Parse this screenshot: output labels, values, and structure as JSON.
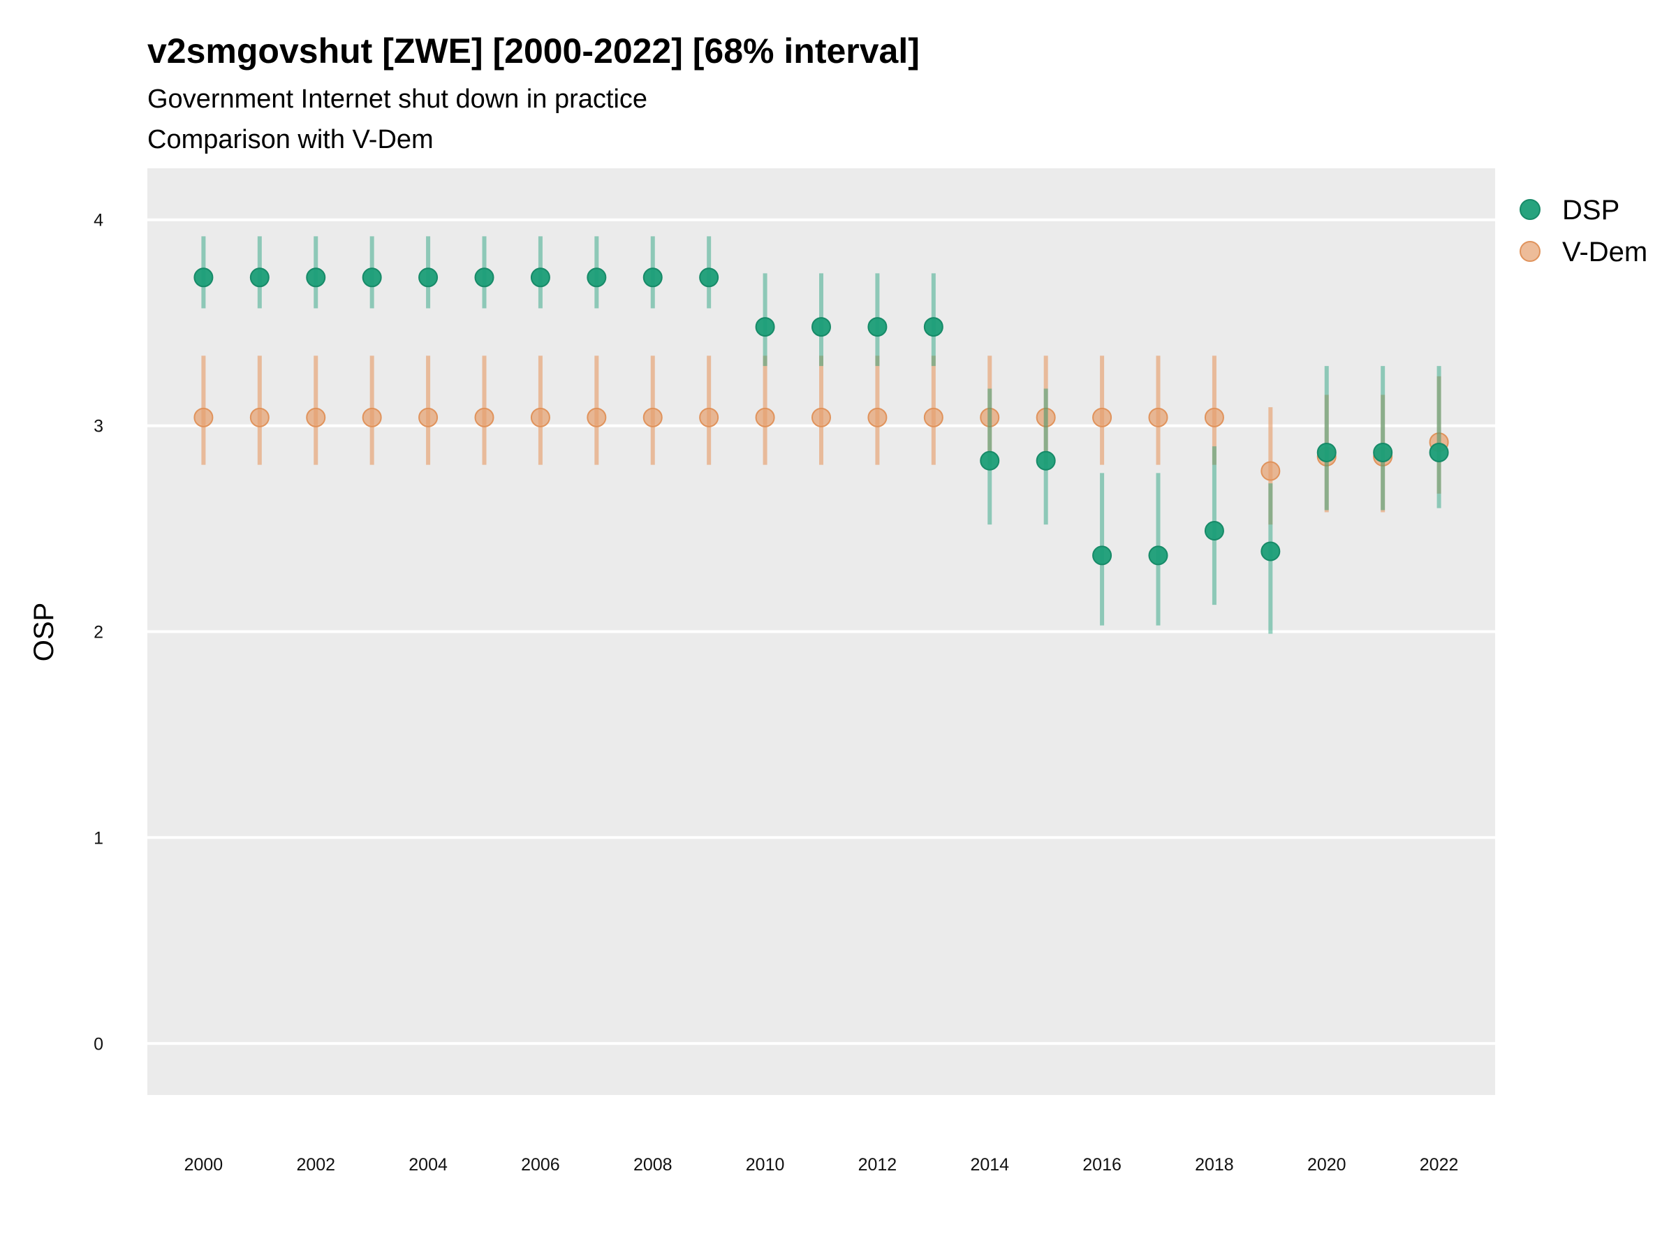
{
  "chart_data": {
    "type": "scatter",
    "title": "v2smgovshut [ZWE] [2000-2022] [68% interval]",
    "subtitle": "Government Internet shut down in practice",
    "subtitle2": "Comparison with V-Dem",
    "xlabel": "",
    "ylabel": "OSP",
    "ylim": [
      -0.25,
      4.25
    ],
    "xlim": [
      1999,
      2023
    ],
    "grid": true,
    "legend_position": "right",
    "y_ticks": [
      "0",
      "1",
      "2",
      "3",
      "4"
    ],
    "x_ticks": [
      "2000",
      "2002",
      "2004",
      "2006",
      "2008",
      "2010",
      "2012",
      "2014",
      "2016",
      "2018",
      "2020",
      "2022"
    ],
    "x": [
      2000,
      2001,
      2002,
      2003,
      2004,
      2005,
      2006,
      2007,
      2008,
      2009,
      2010,
      2011,
      2012,
      2013,
      2014,
      2015,
      2016,
      2017,
      2018,
      2019,
      2020,
      2021,
      2022
    ],
    "series": [
      {
        "name": "DSP",
        "color": "#1b9e77",
        "values": [
          3.72,
          3.72,
          3.72,
          3.72,
          3.72,
          3.72,
          3.72,
          3.72,
          3.72,
          3.72,
          3.48,
          3.48,
          3.48,
          3.48,
          2.83,
          2.83,
          2.37,
          2.37,
          2.49,
          2.39,
          2.87,
          2.87,
          2.87
        ],
        "lower": [
          3.57,
          3.57,
          3.57,
          3.57,
          3.57,
          3.57,
          3.57,
          3.57,
          3.57,
          3.57,
          3.29,
          3.29,
          3.29,
          3.29,
          2.52,
          2.52,
          2.03,
          2.03,
          2.13,
          1.99,
          2.59,
          2.59,
          2.6
        ],
        "upper": [
          3.92,
          3.92,
          3.92,
          3.92,
          3.92,
          3.92,
          3.92,
          3.92,
          3.92,
          3.92,
          3.74,
          3.74,
          3.74,
          3.74,
          3.18,
          3.18,
          2.77,
          2.77,
          2.9,
          2.72,
          3.29,
          3.29,
          3.29
        ]
      },
      {
        "name": "V-Dem",
        "color": "#e6a06e",
        "values": [
          3.04,
          3.04,
          3.04,
          3.04,
          3.04,
          3.04,
          3.04,
          3.04,
          3.04,
          3.04,
          3.04,
          3.04,
          3.04,
          3.04,
          3.04,
          3.04,
          3.04,
          3.04,
          3.04,
          2.78,
          2.85,
          2.85,
          2.92
        ],
        "lower": [
          2.81,
          2.81,
          2.81,
          2.81,
          2.81,
          2.81,
          2.81,
          2.81,
          2.81,
          2.81,
          2.81,
          2.81,
          2.81,
          2.81,
          2.81,
          2.81,
          2.81,
          2.81,
          2.81,
          2.52,
          2.58,
          2.58,
          2.67
        ],
        "upper": [
          3.34,
          3.34,
          3.34,
          3.34,
          3.34,
          3.34,
          3.34,
          3.34,
          3.34,
          3.34,
          3.34,
          3.34,
          3.34,
          3.34,
          3.34,
          3.34,
          3.34,
          3.34,
          3.34,
          3.09,
          3.15,
          3.15,
          3.24
        ]
      }
    ]
  }
}
